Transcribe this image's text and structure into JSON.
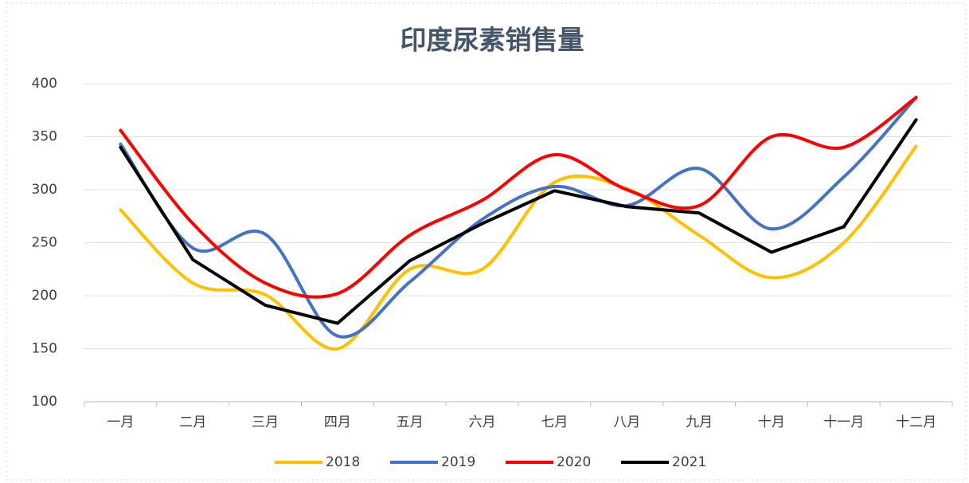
{
  "chart_data": {
    "type": "line",
    "title": "印度尿素销售量",
    "categories": [
      "一月",
      "二月",
      "三月",
      "四月",
      "五月",
      "六月",
      "七月",
      "八月",
      "九月",
      "十月",
      "十一月",
      "十二月"
    ],
    "series": [
      {
        "name": "2018",
        "color": "#ffc000",
        "smooth": true,
        "values": [
          281,
          212,
          201,
          150,
          225,
          225,
          307,
          301,
          257,
          217,
          250,
          341
        ]
      },
      {
        "name": "2019",
        "color": "#4472c4",
        "smooth": true,
        "values": [
          343,
          245,
          258,
          162,
          213,
          272,
          303,
          285,
          320,
          263,
          312,
          387
        ]
      },
      {
        "name": "2020",
        "color": "#ff0000",
        "smooth": true,
        "values": [
          356,
          268,
          212,
          202,
          257,
          290,
          333,
          300,
          285,
          350,
          340,
          387
        ]
      },
      {
        "name": "2021",
        "color": "#000000",
        "smooth": false,
        "values": [
          340,
          234,
          191,
          174,
          233,
          268,
          299,
          284,
          278,
          241,
          265,
          366
        ]
      }
    ],
    "ylim": [
      100,
      400
    ],
    "yticks": [
      100,
      150,
      200,
      250,
      300,
      350,
      400
    ],
    "grid": true,
    "legend": "bottom"
  }
}
